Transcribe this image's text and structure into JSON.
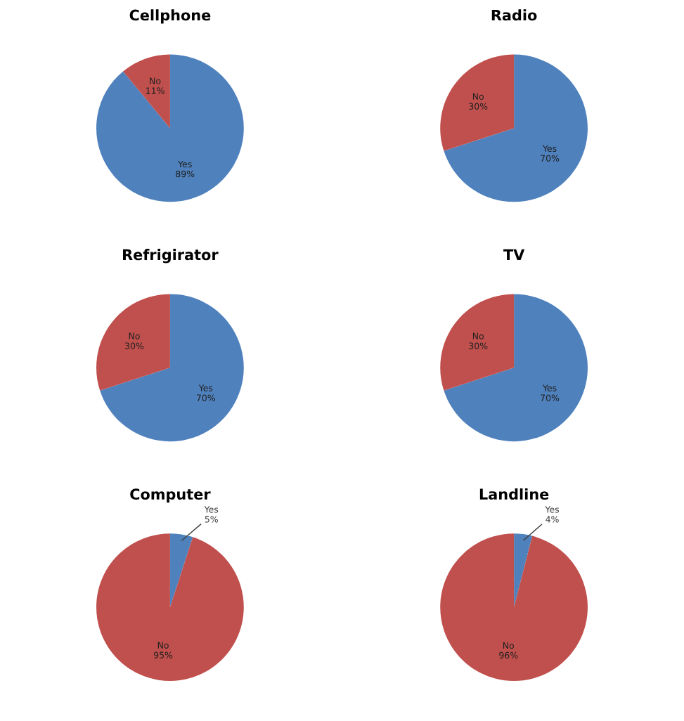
{
  "chart_data": [
    {
      "type": "pie",
      "title": "Cellphone",
      "categories": [
        "Yes",
        "No"
      ],
      "values": [
        89,
        11
      ],
      "colors": [
        "#4f81bd",
        "#c0504d"
      ],
      "value_labels": [
        "89%",
        "11%"
      ]
    },
    {
      "type": "pie",
      "title": "Radio",
      "categories": [
        "Yes",
        "No"
      ],
      "values": [
        70,
        30
      ],
      "colors": [
        "#4f81bd",
        "#c0504d"
      ],
      "value_labels": [
        "70%",
        "30%"
      ]
    },
    {
      "type": "pie",
      "title": "Refrigirator",
      "categories": [
        "Yes",
        "No"
      ],
      "values": [
        70,
        30
      ],
      "colors": [
        "#4f81bd",
        "#c0504d"
      ],
      "value_labels": [
        "70%",
        "30%"
      ]
    },
    {
      "type": "pie",
      "title": "TV",
      "categories": [
        "Yes",
        "No"
      ],
      "values": [
        70,
        30
      ],
      "colors": [
        "#4f81bd",
        "#c0504d"
      ],
      "value_labels": [
        "70%",
        "30%"
      ]
    },
    {
      "type": "pie",
      "title": "Computer",
      "categories": [
        "Yes",
        "No"
      ],
      "values": [
        5,
        95
      ],
      "colors": [
        "#4f81bd",
        "#c0504d"
      ],
      "value_labels": [
        "5%",
        "95%"
      ]
    },
    {
      "type": "pie",
      "title": "Landline",
      "categories": [
        "Yes",
        "No"
      ],
      "values": [
        4,
        96
      ],
      "colors": [
        "#4f81bd",
        "#c0504d"
      ],
      "value_labels": [
        "4%",
        "96%"
      ]
    }
  ]
}
